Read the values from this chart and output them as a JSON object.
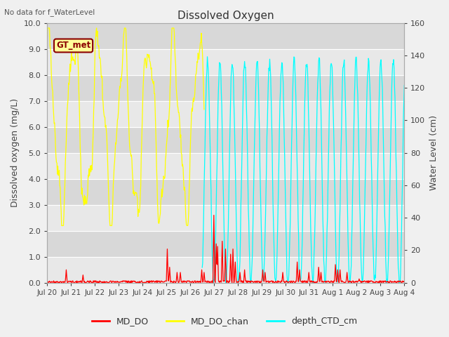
{
  "title": "Dissolved Oxygen",
  "top_left_text": "No data for f_WaterLevel",
  "ylabel_left": "Dissolved oxygen (mg/L)",
  "ylabel_right": "Water Level (cm)",
  "ylim_left": [
    0.0,
    10.0
  ],
  "ylim_right": [
    0,
    160
  ],
  "yticks_left": [
    0.0,
    1.0,
    2.0,
    3.0,
    4.0,
    5.0,
    6.0,
    7.0,
    8.0,
    9.0,
    10.0
  ],
  "yticks_right": [
    0,
    20,
    40,
    60,
    80,
    100,
    120,
    140,
    160
  ],
  "xtick_labels": [
    "Jul 20",
    "Jul 21",
    "Jul 22",
    "Jul 23",
    "Jul 24",
    "Jul 25",
    "Jul 26",
    "Jul 27",
    "Jul 28",
    "Jul 29",
    "Jul 30",
    "Jul 31",
    "Aug 1",
    "Aug 2",
    "Aug 3",
    "Aug 4"
  ],
  "legend_entries": [
    "MD_DO",
    "MD_DO_chan",
    "depth_CTD_cm"
  ],
  "legend_colors": [
    "#ff0000",
    "#ffff00",
    "#00ffff"
  ],
  "annotation_text": "GT_met",
  "annotation_fg": "#8b0000",
  "annotation_bg": "#ffff99",
  "fig_bg": "#f0f0f0",
  "plot_bg": "#d8d8d8",
  "grid_color": "#c0c0c0",
  "stripe_color": "#e8e8e8",
  "line_color_MD_DO": "#ff0000",
  "line_color_MD_DO_chan": "#ffff00",
  "line_color_depth_CTD_cm": "#00ffff",
  "n_days": 16,
  "pts_per_day": 48
}
